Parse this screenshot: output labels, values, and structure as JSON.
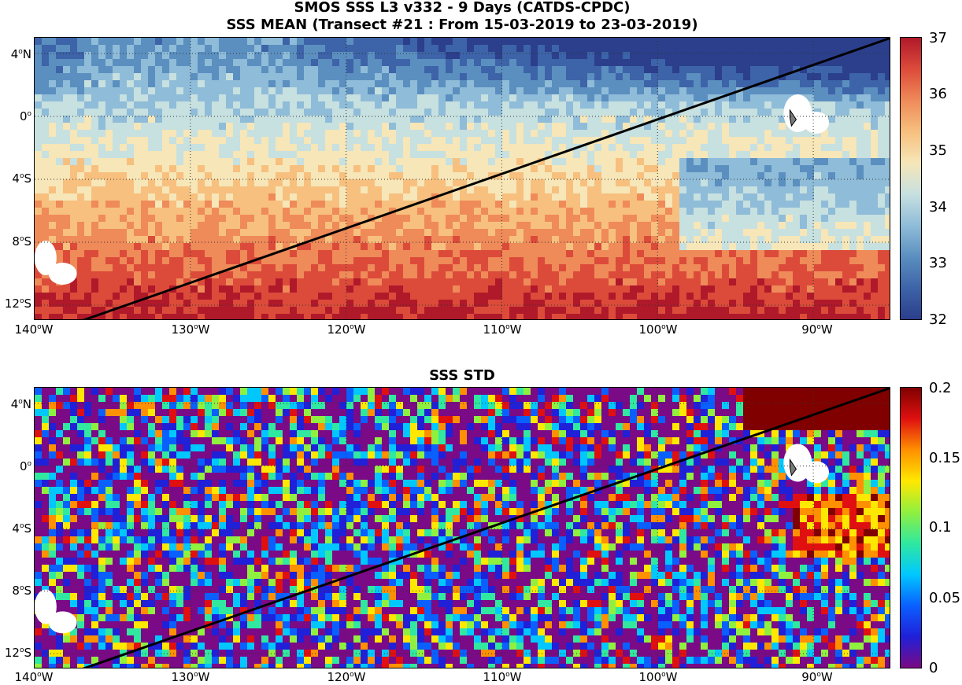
{
  "header": {
    "line1": "SMOS SSS L3 v332 - 9 Days (CATDS-CPDC)",
    "line2": "SSS MEAN (Transect #21 : From 15-03-2019 to 23-03-2019)"
  },
  "panels": [
    {
      "title": "",
      "variable": "SSS MEAN",
      "colorbar": {
        "ticks": [
          "37",
          "36",
          "35",
          "34",
          "33",
          "32"
        ],
        "min": 32,
        "max": 37,
        "colors": [
          "#2b3f8c",
          "#3d63a8",
          "#5b8fc0",
          "#8fbcd8",
          "#c7e0e0",
          "#f6e6b8",
          "#f7c07e",
          "#ef8a59",
          "#dc4b3a",
          "#b0192a"
        ]
      }
    },
    {
      "title": "SSS STD",
      "variable": "SSS STD",
      "colorbar": {
        "ticks": [
          "0.2",
          "0.15",
          "0.1",
          "0.05",
          "0"
        ],
        "min": 0,
        "max": 0.2,
        "colors": [
          "#7a0a85",
          "#2020d8",
          "#0a60ff",
          "#00c8ff",
          "#30e8a0",
          "#90f040",
          "#ffe800",
          "#ff9000",
          "#e01010",
          "#800000"
        ]
      }
    }
  ],
  "axes": {
    "lat_labels": [
      "4°N",
      "0°",
      "4°S",
      "8°S",
      "12°S"
    ],
    "lon_labels": [
      "140°W",
      "130°W",
      "120°W",
      "110°W",
      "100°W",
      "90°W"
    ],
    "lat_range": [
      -13,
      5
    ],
    "lon_range": [
      -140,
      -85
    ]
  },
  "transect": {
    "start": [
      -137,
      -13
    ],
    "end": [
      -85,
      5
    ]
  }
}
